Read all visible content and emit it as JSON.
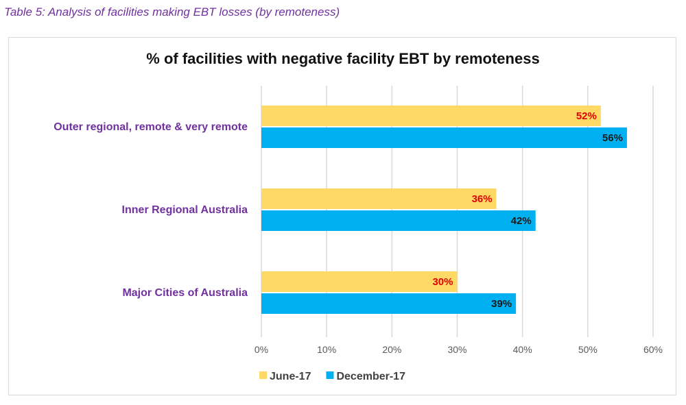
{
  "caption": "Table 5:  Analysis of facilities making EBT losses (by remoteness)",
  "chart_data": {
    "type": "bar",
    "orientation": "horizontal",
    "title": "% of facilities with negative facility EBT by remoteness",
    "categories": [
      "Outer regional, remote & very remote",
      "Inner Regional Australia",
      "Major Cities of Australia"
    ],
    "series": [
      {
        "name": "June-17",
        "values": [
          52,
          36,
          30
        ],
        "color": "#FFD966",
        "label_color": "#E00000"
      },
      {
        "name": "December-17",
        "values": [
          56,
          42,
          39
        ],
        "color": "#00B0F0",
        "label_color": "#1a1a1a"
      }
    ],
    "xlim": [
      0,
      60
    ],
    "xticks": [
      "0%",
      "10%",
      "20%",
      "30%",
      "40%",
      "50%",
      "60%"
    ],
    "value_suffix": "%",
    "grid": true,
    "legend": "bottom-left"
  }
}
